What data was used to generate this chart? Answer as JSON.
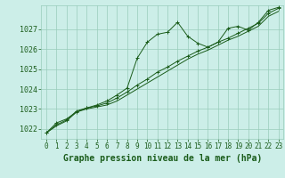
{
  "title": "Graphe pression niveau de la mer (hPa)",
  "bg_color": "#cceee8",
  "grid_color": "#99ccbb",
  "line_color": "#1a5c1a",
  "marker_color": "#1a5c1a",
  "xlim": [
    -0.5,
    23.5
  ],
  "ylim": [
    1021.5,
    1028.2
  ],
  "yticks": [
    1022,
    1023,
    1024,
    1025,
    1026,
    1027
  ],
  "xticks": [
    0,
    1,
    2,
    3,
    4,
    5,
    6,
    7,
    8,
    9,
    10,
    11,
    12,
    13,
    14,
    15,
    16,
    17,
    18,
    19,
    20,
    21,
    22,
    23
  ],
  "series1_x": [
    0,
    1,
    2,
    3,
    4,
    5,
    6,
    7,
    8,
    9,
    10,
    11,
    12,
    13,
    14,
    15,
    16,
    17,
    18,
    19,
    20,
    21,
    22,
    23
  ],
  "series1_y": [
    1021.8,
    1022.3,
    1022.5,
    1022.85,
    1023.05,
    1023.2,
    1023.4,
    1023.7,
    1024.05,
    1025.55,
    1026.35,
    1026.75,
    1026.85,
    1027.35,
    1026.65,
    1026.3,
    1026.1,
    1026.35,
    1027.05,
    1027.15,
    1026.95,
    1027.35,
    1027.95,
    1028.1
  ],
  "series2_x": [
    0,
    1,
    2,
    3,
    4,
    5,
    6,
    7,
    8,
    9,
    10,
    11,
    12,
    13,
    14,
    15,
    16,
    17,
    18,
    19,
    20,
    21,
    22,
    23
  ],
  "series2_y": [
    1021.8,
    1022.2,
    1022.45,
    1022.9,
    1023.05,
    1023.15,
    1023.3,
    1023.55,
    1023.85,
    1024.2,
    1024.5,
    1024.85,
    1025.1,
    1025.4,
    1025.65,
    1025.9,
    1026.1,
    1026.35,
    1026.55,
    1026.8,
    1027.05,
    1027.3,
    1027.8,
    1028.05
  ],
  "series3_x": [
    0,
    1,
    2,
    3,
    4,
    5,
    6,
    7,
    8,
    9,
    10,
    11,
    12,
    13,
    14,
    15,
    16,
    17,
    18,
    19,
    20,
    21,
    22,
    23
  ],
  "series3_y": [
    1021.8,
    1022.15,
    1022.4,
    1022.85,
    1023.0,
    1023.1,
    1023.2,
    1023.4,
    1023.7,
    1024.0,
    1024.3,
    1024.6,
    1024.9,
    1025.2,
    1025.5,
    1025.75,
    1025.95,
    1026.2,
    1026.45,
    1026.65,
    1026.9,
    1027.15,
    1027.65,
    1027.9
  ],
  "tick_fontsize": 6,
  "title_fontsize": 7
}
